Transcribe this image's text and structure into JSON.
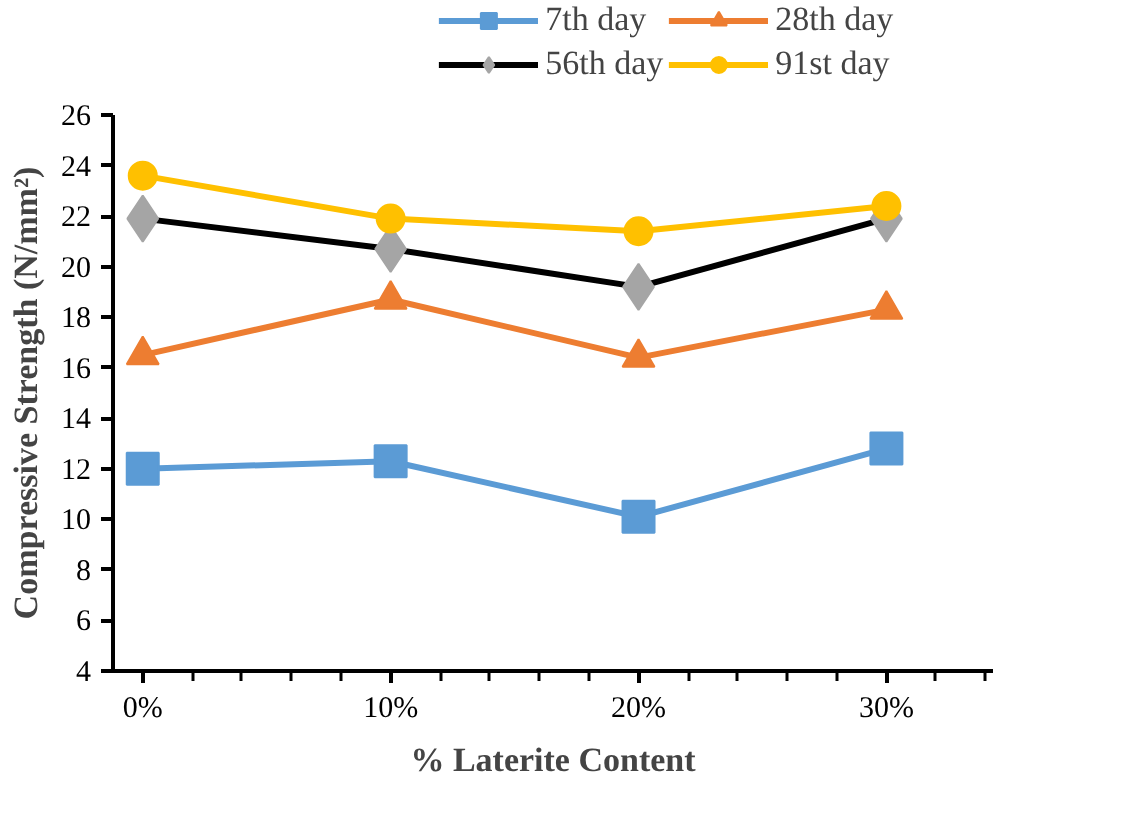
{
  "chart_data": {
    "type": "line",
    "xlabel": "% Laterite Content",
    "ylabel": "Compressive Strength (N/mm²)",
    "categories": [
      "0%",
      "10%",
      "20%",
      "30%"
    ],
    "ylim": [
      4,
      26
    ],
    "yticks": [
      4,
      6,
      8,
      10,
      12,
      14,
      16,
      18,
      20,
      22,
      24,
      26
    ],
    "grid": false,
    "legend": "top right",
    "line_style": "solid",
    "series": [
      {
        "name": "7th day",
        "color": "#5b9bd5",
        "marker": "square",
        "values": [
          12.0,
          12.3,
          10.1,
          12.8
        ]
      },
      {
        "name": "28th day",
        "color": "#ed7d31",
        "marker": "triangle",
        "values": [
          16.5,
          18.7,
          16.4,
          18.3
        ]
      },
      {
        "name": "56th day",
        "color": "#000000",
        "marker": "diamond",
        "values": [
          21.9,
          20.7,
          19.2,
          21.9
        ]
      },
      {
        "name": "91st day",
        "color": "#ffc000",
        "marker": "circle",
        "values": [
          23.6,
          21.9,
          21.4,
          22.4
        ]
      }
    ]
  }
}
